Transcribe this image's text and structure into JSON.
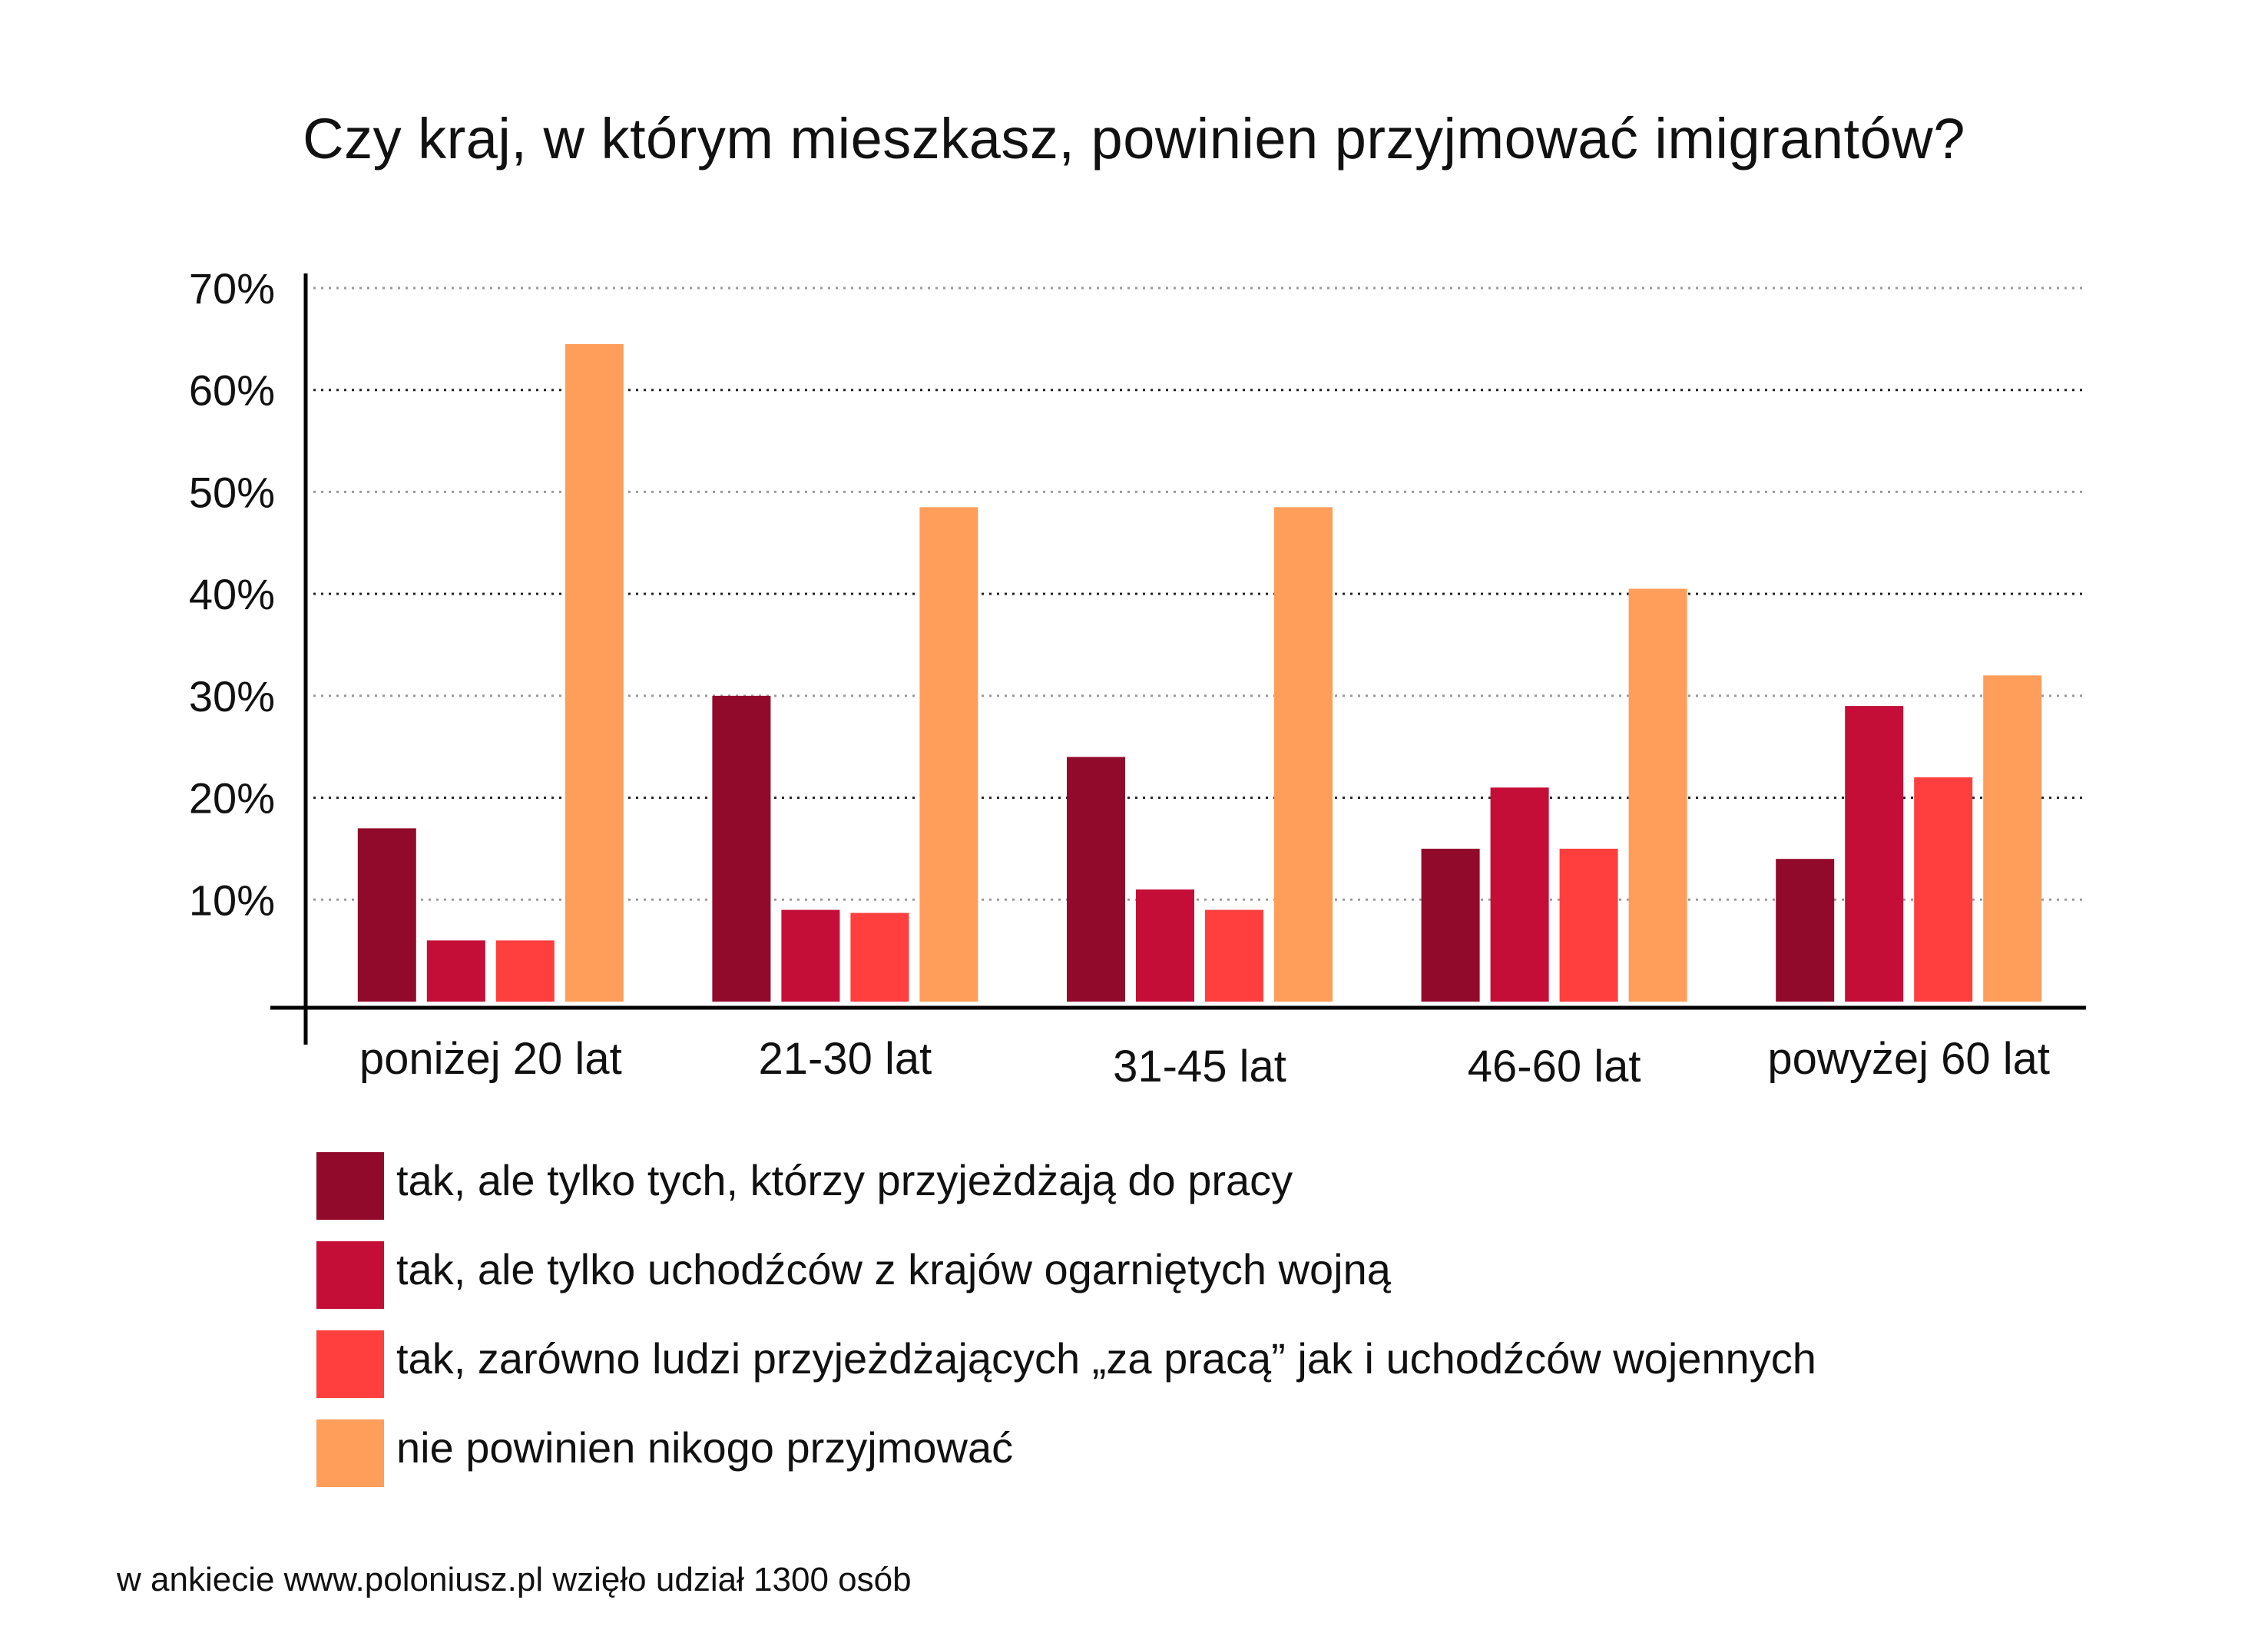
{
  "chart_data": {
    "type": "bar",
    "title": "Czy kraj, w którym mieszkasz, powinien przyjmować imigrantów?",
    "xlabel": "",
    "ylabel": "",
    "ylim": [
      0,
      70
    ],
    "yticks": [
      10,
      20,
      30,
      40,
      50,
      60,
      70
    ],
    "ytick_labels": [
      "10%",
      "20%",
      "30%",
      "40%",
      "50%",
      "60%",
      "70%"
    ],
    "grid": true,
    "legend_position": "bottom",
    "categories": [
      "poniżej 20 lat",
      "21-30 lat",
      "31-45 lat",
      "46-60 lat",
      "powyżej 60 lat"
    ],
    "series": [
      {
        "name": "tak, ale tylko tych, którzy przyjeżdżają do pracy",
        "color": "#920a2b",
        "values": [
          17,
          30,
          24,
          15,
          14
        ]
      },
      {
        "name": "tak, ale tylko uchodźców z krajów ogarniętych wojną",
        "color": "#c40d37",
        "values": [
          6,
          9,
          11,
          21,
          29
        ]
      },
      {
        "name": "tak, zarówno ludzi przyjeżdżających „za pracą” jak i uchodźców wojennych",
        "color": "#ff3e3e",
        "values": [
          6,
          8.7,
          9,
          15,
          22
        ]
      },
      {
        "name": "nie powinien nikogo przyjmować",
        "color": "#ff9d5a",
        "values": [
          64.5,
          48.5,
          48.5,
          40.5,
          32
        ]
      }
    ]
  },
  "footnote": "w ankiecie www.poloniusz.pl wzięło udział 1300 osób"
}
